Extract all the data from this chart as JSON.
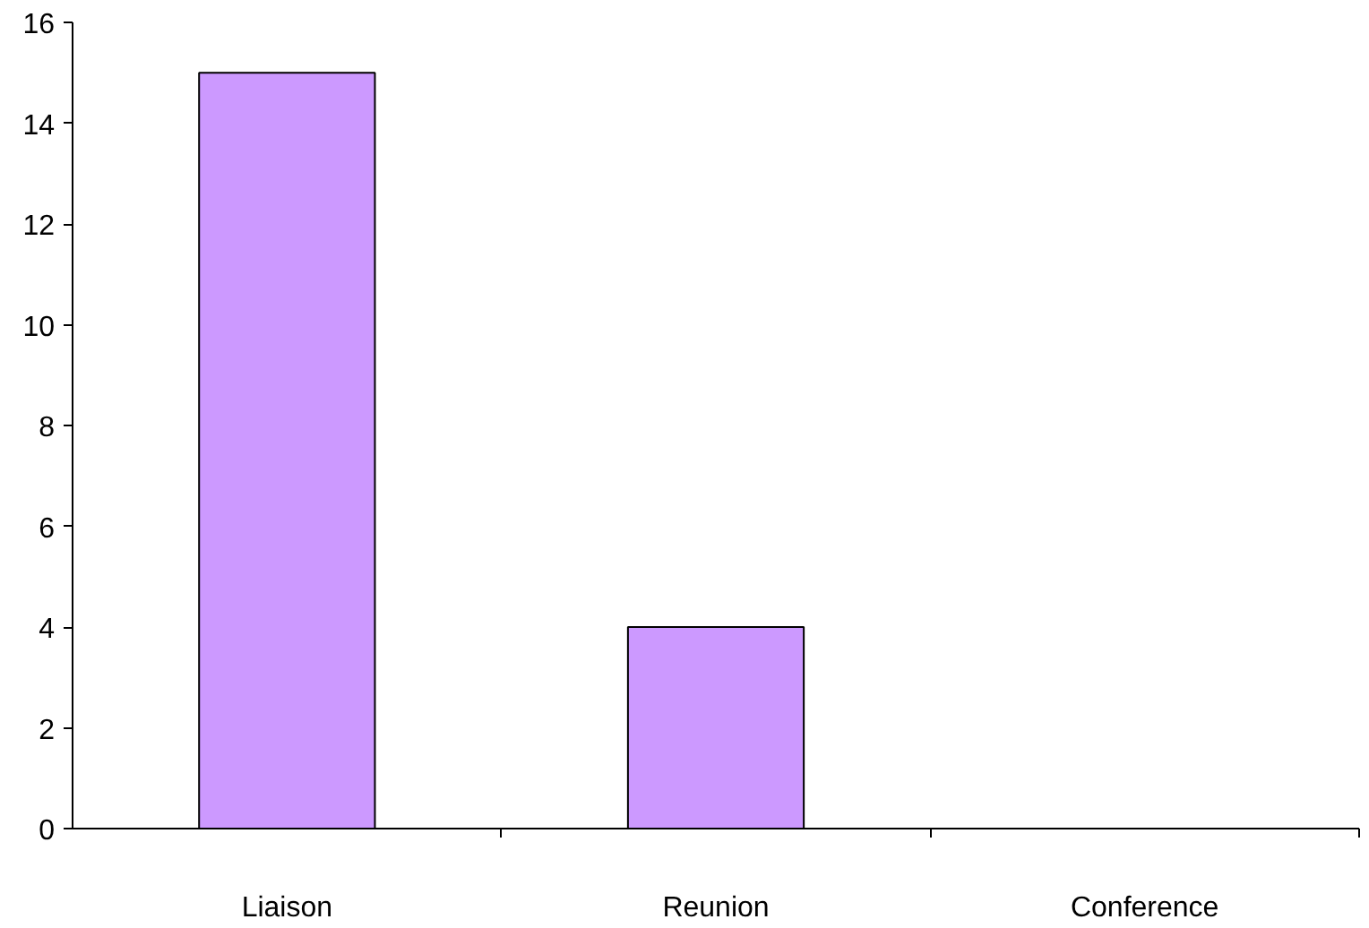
{
  "chart_data": {
    "type": "bar",
    "categories": [
      "Liaison",
      "Reunion",
      "Conference"
    ],
    "values": [
      15,
      4,
      0
    ],
    "color": "#cc99ff",
    "ylim": [
      0,
      16
    ],
    "yticks": [
      0,
      2,
      4,
      6,
      8,
      10,
      12,
      14,
      16
    ],
    "grid": false
  }
}
